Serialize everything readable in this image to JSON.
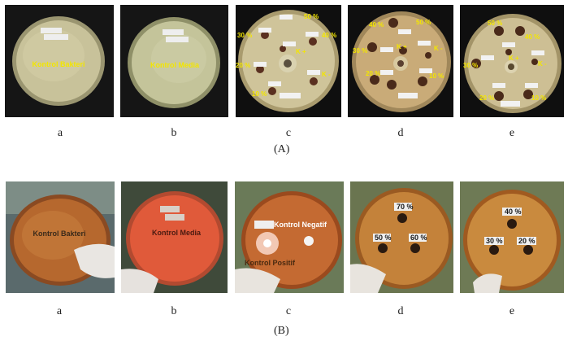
{
  "row_a": {
    "section_label": "(A)",
    "panels": [
      {
        "letter": "a",
        "label": "Kontrol Bakteri"
      },
      {
        "letter": "b",
        "label": "Kontrol Media"
      },
      {
        "letter": "c",
        "p50": "50 %",
        "p30": "30 %",
        "p40": "40 %",
        "p20": "20 %",
        "p10": "10 %",
        "kpos": "K +",
        "kneg": "K -"
      },
      {
        "letter": "d",
        "p40": "40 %",
        "p50": "50 %",
        "p30": "30 %",
        "kpos": "K +",
        "kneg": "K -",
        "p20": "20 %",
        "p10": "10 %"
      },
      {
        "letter": "e",
        "p50": "50 %",
        "p40": "40 %",
        "p30": "30 %",
        "kpos": "K +",
        "kneg": "K -",
        "p20": "20 %",
        "p10": "10 %"
      }
    ]
  },
  "row_b": {
    "section_label": "(B)",
    "panels": [
      {
        "letter": "a",
        "label": "Kontrol Bakteri"
      },
      {
        "letter": "b",
        "label": "Kontrol Media"
      },
      {
        "letter": "c",
        "kneg": "Kontrol Negatif",
        "kpos": "Kontrol Positif"
      },
      {
        "letter": "d",
        "p70": "70 %",
        "p50": "50 %",
        "p60": "60 %"
      },
      {
        "letter": "e",
        "p40": "40 %",
        "p30": "30 %",
        "p20": "20 %"
      }
    ]
  }
}
